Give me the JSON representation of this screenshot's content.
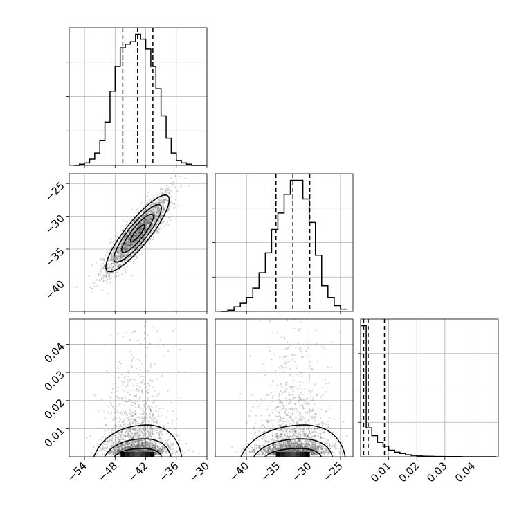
{
  "chart_data": [
    {
      "panel": "hist-param-1",
      "type": "bar",
      "bin_edges": [
        -56,
        -55,
        -54,
        -53,
        -52,
        -51,
        -50,
        -49,
        -48,
        -47,
        -46,
        -45,
        -44,
        -43,
        -42,
        -41,
        -40,
        -39,
        -38,
        -37,
        -36,
        -35,
        -34,
        -33,
        -32,
        -31,
        -30
      ],
      "counts": [
        0,
        1,
        2,
        5,
        10,
        20,
        35,
        60,
        80,
        95,
        98,
        100,
        106,
        102,
        94,
        80,
        62,
        40,
        22,
        10,
        4,
        2,
        1,
        0,
        0,
        0
      ],
      "quantiles": [
        -46.5,
        -43.6,
        -40.6
      ],
      "xlim": [
        -57,
        -30
      ],
      "xticks": [
        -54,
        -48,
        -42,
        -36,
        -30
      ],
      "grid": true
    },
    {
      "panel": "hist-param-2",
      "type": "bar",
      "bin_edges": [
        -44,
        -43,
        -42,
        -41,
        -40,
        -39,
        -38,
        -37,
        -36,
        -35,
        -34,
        -33,
        -32,
        -31,
        -30,
        -29,
        -28,
        -27,
        -26,
        -25,
        -24
      ],
      "counts": [
        0,
        1,
        4,
        7,
        12,
        20,
        33,
        50,
        70,
        84,
        100,
        112,
        112,
        96,
        76,
        48,
        22,
        12,
        5,
        2
      ],
      "quantiles": [
        -35.3,
        -32.6,
        -29.9
      ],
      "xlim": [
        -45,
        -23
      ],
      "xticks": [
        -40,
        -35,
        -30,
        -25
      ],
      "ylim": [
        -44.5,
        -23.5
      ],
      "yticks": [
        -25,
        -30,
        -35,
        -40
      ],
      "grid": true
    },
    {
      "panel": "hist-param-3",
      "type": "bar",
      "bin_edges": [
        0,
        0.002,
        0.004,
        0.006,
        0.008,
        0.01,
        0.012,
        0.014,
        0.016,
        0.018,
        0.02,
        0.022,
        0.024,
        0.026,
        0.028,
        0.03,
        0.032,
        0.034,
        0.036,
        0.038,
        0.04,
        0.042,
        0.044,
        0.046,
        0.048
      ],
      "counts": [
        100,
        22,
        16,
        11,
        8,
        5,
        3.5,
        2.5,
        1.5,
        1,
        0.6,
        0.4,
        0.3,
        0.2,
        0.2,
        0.1,
        0.1,
        0.1,
        0,
        0,
        0,
        0,
        0,
        0
      ],
      "quantiles": [
        0.0011,
        0.0027,
        0.0085
      ],
      "xlim": [
        0,
        0.049
      ],
      "xticks": [
        0.01,
        0.02,
        0.03,
        0.04
      ],
      "xtick_labels": [
        "0.01",
        "0.02",
        "0.03",
        "0.04"
      ],
      "ylim": [
        0,
        0.049
      ],
      "yticks": [
        0.04,
        0.03,
        0.02,
        0.01
      ],
      "ytick_labels": [
        "0.04",
        "0.03",
        "0.02",
        "0.01"
      ],
      "grid": true
    },
    {
      "panel": "scatter-2-vs-1",
      "type": "scatter",
      "x_mean": -43.6,
      "x_sd": 3.0,
      "y_mean": -32.6,
      "y_sd": 2.9,
      "correlation": 0.88,
      "point_count": 2200,
      "contour_levels": 4
    },
    {
      "panel": "scatter-3-vs-1",
      "type": "scatter",
      "x_mean": -43.6,
      "x_sd": 3.0,
      "y_mode": 0.0005,
      "y_scale": 0.006,
      "point_count": 2200,
      "contour_levels": 3
    },
    {
      "panel": "scatter-3-vs-2",
      "type": "scatter",
      "x_mean": -32.6,
      "x_sd": 2.9,
      "y_mode": 0.0005,
      "y_scale": 0.006,
      "point_count": 2200,
      "contour_levels": 3
    }
  ],
  "tick_labels": {
    "x_param_1": [
      "−54",
      "−48",
      "−42",
      "−36",
      "−30"
    ],
    "x_param_2": [
      "−40",
      "−35",
      "−30",
      "−25"
    ],
    "x_param_3": [
      "0.01",
      "0.02",
      "0.03",
      "0.04"
    ],
    "y_param_2": [
      "−25",
      "−30",
      "−35",
      "−40"
    ],
    "y_param_3": [
      "0.04",
      "0.03",
      "0.02",
      "0.01"
    ]
  },
  "colors": {
    "line": "#000000",
    "grid": "#b0b0b0",
    "scatter": "#555555",
    "density_dark": "#000000",
    "density_light": "#ffffff"
  }
}
